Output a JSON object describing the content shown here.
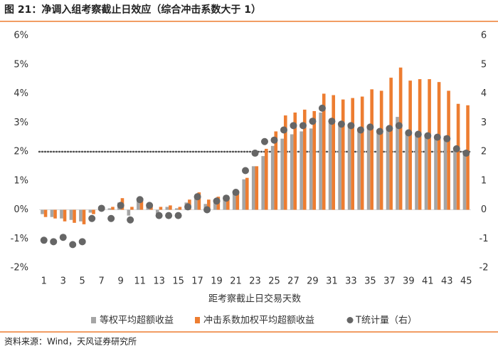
{
  "chart_data": {
    "type": "bar",
    "title": "图 21：净调入组考察截止日效应（综合冲击系数大于 1）",
    "source": "资料来源：Wind，天风证券研究所",
    "xlabel": "距考察截止日交易天数",
    "categories": [
      1,
      null,
      3,
      null,
      5,
      null,
      7,
      null,
      9,
      null,
      11,
      null,
      13,
      null,
      15,
      null,
      17,
      null,
      19,
      null,
      21,
      null,
      23,
      null,
      25,
      null,
      27,
      null,
      29,
      null,
      31,
      null,
      33,
      null,
      35,
      null,
      37,
      null,
      39,
      null,
      41,
      null,
      43,
      null,
      45
    ],
    "ylim": [
      -2,
      6
    ],
    "yticks": [
      {
        "value": -2,
        "label": "-2%"
      },
      {
        "value": -1,
        "label": "-1%"
      },
      {
        "value": 0,
        "label": "0%"
      },
      {
        "value": 1,
        "label": "1%"
      },
      {
        "value": 2,
        "label": "2%"
      },
      {
        "value": 3,
        "label": "3%"
      },
      {
        "value": 4,
        "label": "4%"
      },
      {
        "value": 5,
        "label": "5%"
      },
      {
        "value": 6,
        "label": "6%"
      }
    ],
    "y2lim": [
      -2,
      6
    ],
    "y2ticks": [
      -2,
      -1,
      0,
      1,
      2,
      3,
      4,
      5,
      6
    ],
    "threshold": 2,
    "series": [
      {
        "name": "等权平均超额收益",
        "color": "#a5a5a5",
        "values": [
          -0.15,
          -0.25,
          -0.3,
          -0.35,
          -0.4,
          -0.1,
          0.0,
          0.05,
          0.25,
          -0.2,
          0.3,
          0.15,
          -0.15,
          0.1,
          0.05,
          0.25,
          0.45,
          0.2,
          0.35,
          0.35,
          0.55,
          1.05,
          1.5,
          1.85,
          2.2,
          2.45,
          2.6,
          2.7,
          2.8,
          3.35,
          3.0,
          2.9,
          2.9,
          2.8,
          2.85,
          2.75,
          2.85,
          3.2,
          2.65,
          2.55,
          2.6,
          2.5,
          2.55,
          2.05,
          1.9
        ]
      },
      {
        "name": "冲击系数加权平均超额收益",
        "color": "#ed7d31",
        "values": [
          -0.25,
          -0.3,
          -0.4,
          -0.45,
          -0.5,
          -0.15,
          0.05,
          0.1,
          0.4,
          0.1,
          0.4,
          0.2,
          0.1,
          0.15,
          0.1,
          0.35,
          0.6,
          0.35,
          0.45,
          0.45,
          0.65,
          1.1,
          1.5,
          2.1,
          2.7,
          3.25,
          3.35,
          3.45,
          3.4,
          4.0,
          3.95,
          3.8,
          3.85,
          3.9,
          4.15,
          4.1,
          4.55,
          4.9,
          4.45,
          4.5,
          4.5,
          4.4,
          4.1,
          3.65,
          3.6
        ]
      },
      {
        "name": "T统计量（右）",
        "color": "#666666",
        "type": "scatter",
        "axis": "y2",
        "values": [
          -1.05,
          -1.1,
          -0.95,
          -1.2,
          -1.1,
          -0.3,
          0.05,
          -0.3,
          0.15,
          -0.35,
          0.35,
          0.15,
          -0.2,
          -0.2,
          -0.2,
          0.1,
          0.45,
          0.0,
          0.3,
          0.4,
          0.6,
          1.35,
          1.95,
          2.35,
          2.4,
          2.75,
          2.9,
          2.9,
          3.05,
          3.5,
          3.05,
          2.95,
          2.9,
          2.75,
          2.85,
          2.7,
          2.8,
          2.9,
          2.65,
          2.6,
          2.55,
          2.5,
          2.45,
          2.1,
          1.95
        ]
      }
    ]
  }
}
